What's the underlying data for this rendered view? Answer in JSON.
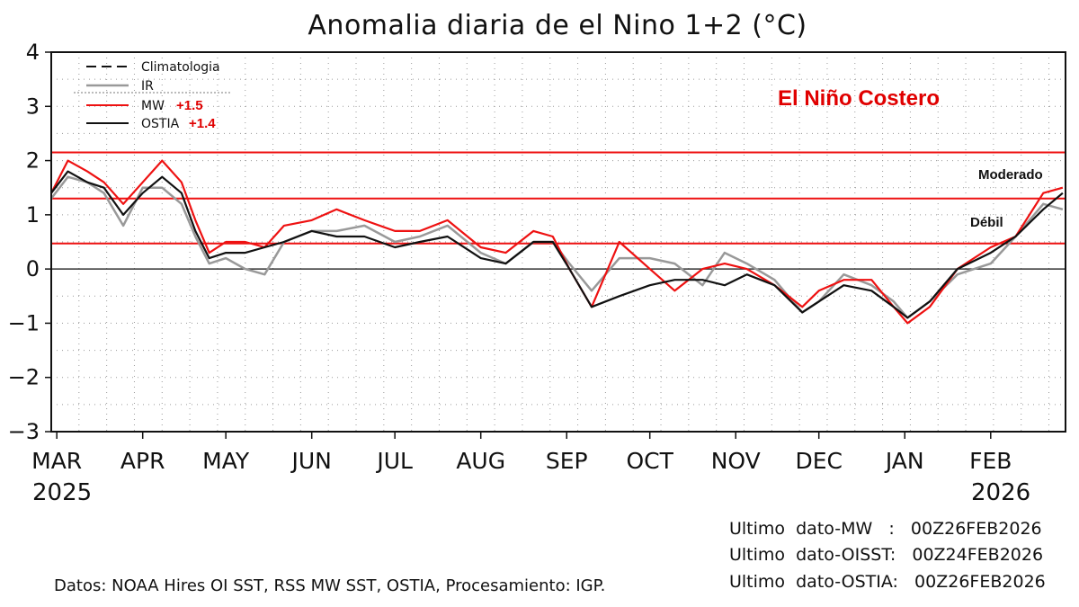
{
  "chart_data": {
    "type": "line",
    "title": "Anomalia diaria de el Nino 1+2 (°C)",
    "xlabel": "",
    "ylabel": "",
    "ylim": [
      -3,
      4
    ],
    "yticks": [
      "4",
      "3",
      "2",
      "1",
      "0",
      "−1",
      "−2",
      "−3"
    ],
    "grid": true,
    "legend_position": "top-left",
    "x_ticks": [
      "MAR",
      "APR",
      "MAY",
      "JUN",
      "JUL",
      "AUG",
      "SEP",
      "OCT",
      "NOV",
      "DEC",
      "JAN",
      "FEB"
    ],
    "x_tick_dates": [
      "2025-03-01",
      "2025-04-01",
      "2025-05-01",
      "2025-06-01",
      "2025-07-01",
      "2025-08-01",
      "2025-09-01",
      "2025-10-01",
      "2025-11-01",
      "2025-12-01",
      "2026-01-01",
      "2026-02-01"
    ],
    "x_range": [
      "2025-02-27",
      "2026-02-28"
    ],
    "year_start": "2025",
    "year_end": "2026",
    "series": [
      {
        "name": "Climatologia",
        "style": "dashed",
        "color": "#111111",
        "values": []
      },
      {
        "name": "IR",
        "color": "#999999",
        "x": [
          "2025-02-27",
          "2025-03-05",
          "2025-03-12",
          "2025-03-18",
          "2025-03-25",
          "2025-04-01",
          "2025-04-08",
          "2025-04-15",
          "2025-04-20",
          "2025-04-25",
          "2025-05-01",
          "2025-05-08",
          "2025-05-15",
          "2025-05-22",
          "2025-06-01",
          "2025-06-10",
          "2025-06-20",
          "2025-07-01",
          "2025-07-10",
          "2025-07-20",
          "2025-08-01",
          "2025-08-10",
          "2025-08-20",
          "2025-08-27",
          "2025-09-02",
          "2025-09-10",
          "2025-09-20",
          "2025-10-01",
          "2025-10-10",
          "2025-10-20",
          "2025-10-28",
          "2025-11-05",
          "2025-11-15",
          "2025-11-25",
          "2025-12-01",
          "2025-12-10",
          "2025-12-20",
          "2025-12-28",
          "2026-01-02",
          "2026-01-10",
          "2026-01-20",
          "2026-02-01",
          "2026-02-10",
          "2026-02-20",
          "2026-02-27"
        ],
        "values": [
          1.3,
          1.7,
          1.6,
          1.4,
          0.8,
          1.5,
          1.5,
          1.2,
          0.6,
          0.1,
          0.2,
          0.0,
          -0.1,
          0.5,
          0.7,
          0.7,
          0.8,
          0.5,
          0.6,
          0.8,
          0.3,
          0.1,
          0.5,
          0.5,
          0.1,
          -0.4,
          0.2,
          0.2,
          0.1,
          -0.3,
          0.3,
          0.1,
          -0.2,
          -0.8,
          -0.6,
          -0.1,
          -0.3,
          -0.6,
          -0.9,
          -0.6,
          -0.1,
          0.1,
          0.6,
          1.2,
          1.1
        ]
      },
      {
        "name": "MW",
        "color": "#ee1111",
        "annotation": "+1.5",
        "x": [
          "2025-02-27",
          "2025-03-05",
          "2025-03-12",
          "2025-03-18",
          "2025-03-25",
          "2025-04-01",
          "2025-04-08",
          "2025-04-15",
          "2025-04-20",
          "2025-04-25",
          "2025-05-01",
          "2025-05-08",
          "2025-05-15",
          "2025-05-22",
          "2025-06-01",
          "2025-06-10",
          "2025-06-20",
          "2025-07-01",
          "2025-07-10",
          "2025-07-20",
          "2025-08-01",
          "2025-08-10",
          "2025-08-20",
          "2025-08-27",
          "2025-09-02",
          "2025-09-10",
          "2025-09-20",
          "2025-10-01",
          "2025-10-10",
          "2025-10-20",
          "2025-10-28",
          "2025-11-05",
          "2025-11-15",
          "2025-11-25",
          "2025-12-01",
          "2025-12-10",
          "2025-12-20",
          "2025-12-28",
          "2026-01-02",
          "2026-01-10",
          "2026-01-20",
          "2026-02-01",
          "2026-02-10",
          "2026-02-20",
          "2026-02-27"
        ],
        "values": [
          1.4,
          2.0,
          1.8,
          1.6,
          1.2,
          1.6,
          2.0,
          1.6,
          0.9,
          0.3,
          0.5,
          0.5,
          0.4,
          0.8,
          0.9,
          1.1,
          0.9,
          0.7,
          0.7,
          0.9,
          0.4,
          0.3,
          0.7,
          0.6,
          0.0,
          -0.7,
          0.5,
          0.0,
          -0.4,
          0.0,
          0.1,
          0.0,
          -0.3,
          -0.7,
          -0.4,
          -0.2,
          -0.2,
          -0.7,
          -1.0,
          -0.7,
          0.0,
          0.4,
          0.6,
          1.4,
          1.5
        ]
      },
      {
        "name": "OSTIA",
        "color": "#111111",
        "annotation": "+1.4",
        "x": [
          "2025-02-27",
          "2025-03-05",
          "2025-03-12",
          "2025-03-18",
          "2025-03-25",
          "2025-04-01",
          "2025-04-08",
          "2025-04-15",
          "2025-04-20",
          "2025-04-25",
          "2025-05-01",
          "2025-05-08",
          "2025-05-15",
          "2025-05-22",
          "2025-06-01",
          "2025-06-10",
          "2025-06-20",
          "2025-07-01",
          "2025-07-10",
          "2025-07-20",
          "2025-08-01",
          "2025-08-10",
          "2025-08-20",
          "2025-08-27",
          "2025-09-02",
          "2025-09-10",
          "2025-09-20",
          "2025-10-01",
          "2025-10-10",
          "2025-10-20",
          "2025-10-28",
          "2025-11-05",
          "2025-11-15",
          "2025-11-25",
          "2025-12-01",
          "2025-12-10",
          "2025-12-20",
          "2025-12-28",
          "2026-01-02",
          "2026-01-10",
          "2026-01-20",
          "2026-02-01",
          "2026-02-10",
          "2026-02-20",
          "2026-02-27"
        ],
        "values": [
          1.4,
          1.8,
          1.6,
          1.5,
          1.0,
          1.4,
          1.7,
          1.4,
          0.7,
          0.2,
          0.3,
          0.3,
          0.4,
          0.5,
          0.7,
          0.6,
          0.6,
          0.4,
          0.5,
          0.6,
          0.2,
          0.1,
          0.5,
          0.5,
          0.0,
          -0.7,
          -0.5,
          -0.3,
          -0.2,
          -0.2,
          -0.3,
          -0.1,
          -0.3,
          -0.8,
          -0.6,
          -0.3,
          -0.4,
          -0.7,
          -0.9,
          -0.6,
          0.0,
          0.3,
          0.6,
          1.1,
          1.4
        ]
      }
    ],
    "thresholds": [
      {
        "value": 2.15,
        "label": "",
        "color": "#ee1111"
      },
      {
        "value": 1.3,
        "label": "Moderado",
        "color": "#ee1111"
      },
      {
        "value": 0.47,
        "label": "Débil",
        "color": "#ee1111"
      }
    ],
    "zero_line_color": "#333333",
    "headline": "El Niño Costero"
  },
  "footer": {
    "source": "Datos: NOAA Hires OI SST, RSS MW SST, OSTIA, Procesamiento: IGP.",
    "last_data": [
      "Ultimo  dato-MW   :   00Z26FEB2026",
      "Ultimo  dato-OISST:   00Z24FEB2026",
      "Ultimo  dato-OSTIA:   00Z26FEB2026"
    ]
  }
}
